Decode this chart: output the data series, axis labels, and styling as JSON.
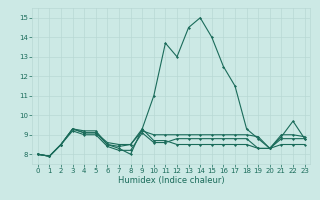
{
  "xlabel": "Humidex (Indice chaleur)",
  "xlim": [
    -0.5,
    23.5
  ],
  "ylim": [
    7.5,
    15.5
  ],
  "yticks": [
    8,
    9,
    10,
    11,
    12,
    13,
    14,
    15
  ],
  "xticks": [
    0,
    1,
    2,
    3,
    4,
    5,
    6,
    7,
    8,
    9,
    10,
    11,
    12,
    13,
    14,
    15,
    16,
    17,
    18,
    19,
    20,
    21,
    22,
    23
  ],
  "bg_color": "#cce9e5",
  "grid_color": "#b8d8d4",
  "line_color": "#1a6b5a",
  "lines": [
    [
      8.0,
      7.9,
      8.5,
      9.3,
      9.2,
      9.2,
      8.5,
      8.3,
      8.0,
      9.3,
      11.0,
      13.7,
      13.0,
      14.5,
      15.0,
      14.0,
      12.5,
      11.5,
      9.3,
      8.8,
      8.3,
      8.9,
      9.7,
      8.8
    ],
    [
      8.0,
      7.9,
      8.5,
      9.3,
      9.1,
      9.1,
      8.6,
      8.5,
      8.5,
      9.2,
      9.0,
      9.0,
      9.0,
      9.0,
      9.0,
      9.0,
      9.0,
      9.0,
      9.0,
      8.9,
      8.3,
      9.0,
      9.0,
      8.9
    ],
    [
      8.0,
      7.9,
      8.5,
      9.3,
      9.1,
      9.1,
      8.5,
      8.4,
      8.5,
      9.3,
      8.7,
      8.7,
      8.5,
      8.5,
      8.5,
      8.5,
      8.5,
      8.5,
      8.5,
      8.3,
      8.3,
      8.5,
      8.5,
      8.5
    ],
    [
      8.0,
      7.9,
      8.5,
      9.2,
      9.0,
      9.0,
      8.4,
      8.2,
      8.2,
      9.1,
      8.6,
      8.6,
      8.8,
      8.8,
      8.8,
      8.8,
      8.8,
      8.8,
      8.8,
      8.3,
      8.3,
      8.8,
      8.8,
      8.8
    ]
  ]
}
